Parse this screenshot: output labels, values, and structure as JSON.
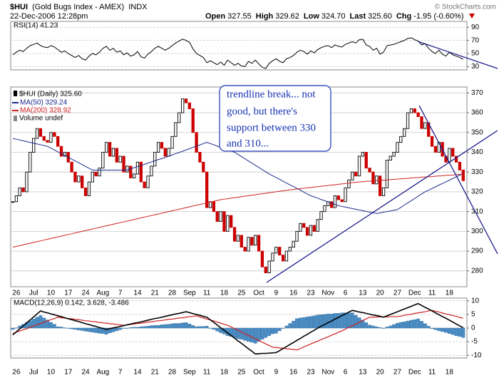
{
  "header": {
    "symbol": "$HUI",
    "name": "(Gold Bugs Index - AMEX)",
    "exchange": "INDX",
    "datetime": "22-Dec-2006 12:28pm",
    "quote": [
      [
        "Open",
        "327.55"
      ],
      [
        "High",
        "329.62"
      ],
      [
        "Low",
        "324.70"
      ],
      [
        "Last",
        "325.60"
      ],
      [
        "Chg",
        "-1.95 (-0.60%)"
      ]
    ],
    "credit": "© StockCharts.com"
  },
  "annotation": {
    "lines": [
      "trendline break... not",
      "good, but there's",
      "support between 330",
      "and 310..."
    ]
  },
  "chart_data": [
    {
      "type": "line",
      "label": "RSI(14) 41.23",
      "color": "#000000",
      "ylim": [
        25,
        99
      ],
      "yticks": [
        90,
        70,
        50,
        30
      ],
      "grid": true,
      "values": [
        48,
        52,
        55,
        53,
        58,
        62,
        64,
        66,
        62,
        60,
        59,
        62,
        60,
        56,
        52,
        54,
        50,
        47,
        44,
        47,
        42,
        40,
        46,
        50,
        48,
        52,
        58,
        61,
        55,
        58,
        52,
        54,
        48,
        51,
        46,
        48,
        53,
        45,
        43,
        49,
        53,
        58,
        61,
        58,
        55,
        58,
        62,
        66,
        69,
        72,
        70,
        67,
        57,
        50,
        47,
        44,
        36,
        39,
        36,
        33,
        37,
        32,
        40,
        36,
        32,
        35,
        31,
        30,
        38,
        35,
        40,
        34,
        29,
        27,
        35,
        39,
        42,
        38,
        36,
        42,
        44,
        47,
        52,
        55,
        53,
        49,
        54,
        51,
        56,
        59,
        61,
        62,
        59,
        63,
        61,
        60,
        64,
        66,
        68,
        66,
        71,
        72,
        63,
        61,
        55,
        58,
        49,
        52,
        62,
        63,
        64,
        66,
        68,
        70,
        73,
        74,
        71,
        69,
        63,
        65,
        58,
        53,
        50,
        55,
        49,
        46,
        52,
        48,
        46,
        44,
        41.23
      ]
    },
    {
      "type": "candlestick",
      "label": "$HUI (Daily) 325.60",
      "volume_label": "Volume undef",
      "up_color": "#000000",
      "down_color": "#cc0000",
      "ylim": [
        272,
        373
      ],
      "yticks": [
        280,
        290,
        300,
        310,
        320,
        330,
        340,
        350,
        360,
        370
      ],
      "grid": true,
      "categories": [
        null,
        "26",
        null,
        null,
        null,
        null,
        "Jul",
        null,
        null,
        null,
        null,
        "10",
        null,
        null,
        null,
        null,
        "17",
        null,
        null,
        null,
        null,
        "24",
        null,
        null,
        null,
        null,
        "Aug",
        null,
        null,
        null,
        null,
        "7",
        null,
        null,
        null,
        null,
        "14",
        null,
        null,
        null,
        null,
        "21",
        null,
        null,
        null,
        null,
        "28",
        null,
        null,
        null,
        null,
        "Sep",
        null,
        null,
        null,
        null,
        "11",
        null,
        null,
        null,
        null,
        "18",
        null,
        null,
        null,
        null,
        "25",
        null,
        null,
        null,
        null,
        "Oct",
        null,
        null,
        null,
        null,
        "9",
        null,
        null,
        null,
        null,
        "16",
        null,
        null,
        null,
        null,
        "23",
        null,
        null,
        null,
        null,
        "Nov",
        null,
        null,
        null,
        null,
        "6",
        null,
        null,
        null,
        null,
        "13",
        null,
        null,
        null,
        null,
        "20",
        null,
        null,
        null,
        null,
        "27",
        null,
        null,
        null,
        null,
        "Dec",
        null,
        null,
        null,
        null,
        "11",
        null,
        null,
        null,
        null,
        "18",
        null,
        null,
        null,
        null
      ],
      "values": [
        315,
        318,
        322,
        320,
        330,
        340,
        347,
        352,
        348,
        346,
        345,
        350,
        348,
        343,
        338,
        340,
        335,
        330,
        325,
        328,
        322,
        318,
        325,
        330,
        328,
        332,
        340,
        345,
        338,
        342,
        335,
        338,
        330,
        333,
        327,
        329,
        335,
        325,
        322,
        328,
        333,
        340,
        345,
        342,
        338,
        342,
        348,
        355,
        360,
        367,
        365,
        362,
        350,
        340,
        335,
        330,
        312,
        315,
        310,
        305,
        310,
        300,
        308,
        302,
        295,
        298,
        292,
        290,
        297,
        293,
        298,
        290,
        282,
        279,
        285,
        289,
        292,
        288,
        285,
        290,
        292,
        295,
        300,
        304,
        302,
        298,
        303,
        300,
        306,
        310,
        313,
        315,
        312,
        318,
        316,
        315,
        322,
        326,
        330,
        328,
        338,
        340,
        332,
        330,
        324,
        328,
        318,
        322,
        336,
        338,
        340,
        345,
        348,
        352,
        360,
        362,
        360,
        358,
        352,
        355,
        348,
        343,
        340,
        345,
        338,
        335,
        342,
        338,
        335,
        331,
        325.6
      ],
      "series": [
        {
          "name": "MA(50) 329.24",
          "color": "#1c2a8c",
          "values": [
            347,
            346.6,
            346.2,
            345.8,
            345.4,
            345,
            344.6,
            344.2,
            343.8,
            343.4,
            343,
            342.1,
            341.2,
            340.2,
            339.3,
            338.4,
            337.5,
            336.5,
            335.6,
            334.7,
            333.8,
            332.8,
            331.9,
            331,
            331,
            331,
            331,
            331,
            331,
            331,
            331,
            331,
            331,
            331,
            331.6,
            332.2,
            332.8,
            333.3,
            333.9,
            334.5,
            335.1,
            335.7,
            336.3,
            336.8,
            337.4,
            338,
            338.6,
            339.3,
            339.9,
            340.5,
            341.2,
            341.8,
            342.5,
            343.1,
            343.7,
            344.4,
            345,
            344.4,
            343.8,
            343.1,
            342.5,
            341.9,
            341.3,
            340.6,
            340,
            338.9,
            337.8,
            336.7,
            335.6,
            334.5,
            333.4,
            332.3,
            331.2,
            330.1,
            329,
            328.1,
            327.2,
            326.3,
            325.3,
            324.4,
            323.5,
            322.6,
            321.7,
            320.8,
            319.8,
            318.9,
            318,
            317.4,
            316.8,
            316.1,
            315.5,
            314.9,
            314.3,
            313.6,
            313,
            312.6,
            312.3,
            311.9,
            311.5,
            311.2,
            310.8,
            310.5,
            310.1,
            309.7,
            309.4,
            309,
            309.3,
            309.7,
            310,
            310.3,
            310.7,
            311,
            312.1,
            313.3,
            314.4,
            315.5,
            316.6,
            317.8,
            318.9,
            320,
            320.8,
            321.7,
            322.5,
            323.4,
            324.2,
            325,
            325.9,
            326.7,
            327.6,
            328.4,
            329.24
          ]
        },
        {
          "name": "MA(200) 328.92",
          "color": "#d02020",
          "values": [
            292,
            292.4,
            292.8,
            293.2,
            293.6,
            294,
            294.4,
            294.8,
            295.2,
            295.6,
            296,
            296.4,
            296.8,
            297.2,
            297.6,
            298,
            298.4,
            298.8,
            299.2,
            299.6,
            300,
            300.4,
            300.8,
            301.2,
            301.6,
            302,
            302.4,
            302.8,
            303.2,
            303.6,
            304,
            304.4,
            304.8,
            305.2,
            305.6,
            306,
            306.4,
            306.8,
            307.2,
            307.6,
            308,
            308.4,
            308.8,
            309.2,
            309.6,
            310,
            310.4,
            310.8,
            311.2,
            311.6,
            312,
            312.4,
            312.8,
            313.2,
            313.6,
            314,
            314.4,
            314.8,
            315.2,
            315.6,
            316,
            316.3,
            316.5,
            316.8,
            317,
            317.3,
            317.5,
            317.8,
            318,
            318.3,
            318.5,
            318.8,
            319,
            319.3,
            319.5,
            319.8,
            320,
            320.3,
            320.5,
            320.8,
            321,
            321.2,
            321.4,
            321.6,
            321.8,
            322,
            322.2,
            322.4,
            322.6,
            322.8,
            323,
            323.2,
            323.4,
            323.6,
            323.8,
            324,
            324.2,
            324.4,
            324.6,
            324.8,
            325,
            325.1,
            325.3,
            325.4,
            325.5,
            325.7,
            325.8,
            325.9,
            326,
            326.2,
            326.3,
            326.4,
            326.6,
            326.7,
            326.8,
            327,
            327.1,
            327.2,
            327.4,
            327.5,
            327.6,
            327.7,
            327.9,
            328,
            328.1,
            328.3,
            328.4,
            328.5,
            328.7,
            328.8,
            328.92
          ]
        }
      ]
    },
    {
      "type": "bar",
      "label": "MACD(12,26,9) 0.142, 3.628, -3.486",
      "ylim": [
        -11,
        11
      ],
      "yticks": [
        10,
        5,
        0,
        -5,
        -10
      ],
      "grid": true,
      "macd_color": "#000000",
      "signal_color": "#d02020",
      "histogram_color": "#4a8cc4",
      "macd": [
        -2.5,
        -1.4,
        -0.3,
        0.8,
        1.9,
        3,
        4.1,
        5.2,
        6.3,
        5.9,
        5.6,
        5.2,
        4.9,
        4.5,
        4.2,
        3.8,
        3.4,
        3.1,
        2.7,
        2.4,
        2,
        1.6,
        1.3,
        0.9,
        0.6,
        0.2,
        -0.1,
        -0.5,
        -0.2,
        0.1,
        0.3,
        0.6,
        0.9,
        1.2,
        1.5,
        1.8,
        2,
        2.3,
        2.6,
        2.9,
        3.2,
        3.5,
        3.7,
        4,
        4.3,
        4.6,
        4.9,
        5.2,
        5.4,
        5.7,
        6,
        5.7,
        5.3,
        5,
        4.7,
        4.3,
        4,
        3,
        2.1,
        1.1,
        0.1,
        -0.8,
        -1.8,
        -2.7,
        -3.7,
        -4.7,
        -5.6,
        -6.6,
        -7.6,
        -8.5,
        -9.5,
        -9.4,
        -9.3,
        -9.3,
        -9.2,
        -9.1,
        -9,
        -8.3,
        -7.5,
        -6.8,
        -6,
        -5.3,
        -4.5,
        -3.8,
        -3,
        -2.3,
        -1.5,
        -0.8,
        0,
        0.7,
        1.3,
        2,
        2.6,
        3.3,
        3.9,
        4.6,
        5.2,
        5.9,
        6.5,
        6.2,
        5.9,
        5.7,
        5.4,
        5.1,
        4.8,
        4.6,
        4.3,
        4,
        4.5,
        5,
        5.5,
        6,
        6.5,
        7,
        7.5,
        8,
        8.5,
        9,
        8.3,
        7.6,
        7,
        6.3,
        5.6,
        4.9,
        4.2,
        3.6,
        2.9,
        2.2,
        1.5,
        0.8,
        0.142
      ],
      "signal": [
        -2,
        -1.5,
        -1.1,
        -0.6,
        -0.2,
        0.3,
        0.8,
        1.2,
        1.7,
        2.2,
        2.6,
        3.1,
        3.5,
        4,
        3.8,
        3.7,
        3.5,
        3.4,
        3.2,
        3.1,
        2.9,
        2.7,
        2.6,
        2.4,
        2.3,
        2.1,
        1.9,
        1.8,
        1.6,
        1.5,
        1.3,
        1.2,
        1,
        1.2,
        1.3,
        1.5,
        1.7,
        1.8,
        2,
        2.2,
        2.3,
        2.5,
        2.7,
        2.8,
        3,
        3.2,
        3.3,
        3.5,
        3.7,
        3.8,
        4,
        4.2,
        4.3,
        4.5,
        4.1,
        3.7,
        3.3,
        3,
        2.6,
        2.2,
        1.8,
        1.4,
        1,
        0.4,
        -0.2,
        -0.8,
        -1.5,
        -2.1,
        -2.7,
        -3.3,
        -3.9,
        -4.5,
        -5.2,
        -5.8,
        -6.4,
        -7,
        -7.1,
        -7.3,
        -7.4,
        -7.6,
        -7.7,
        -7.9,
        -8,
        -7.5,
        -6.9,
        -6.4,
        -5.8,
        -5.3,
        -4.8,
        -4.2,
        -3.7,
        -3.2,
        -2.6,
        -2.1,
        -1.5,
        -1,
        -0.4,
        0.3,
        0.9,
        1.5,
        2.1,
        2.8,
        3.4,
        4,
        4,
        4.1,
        4.1,
        4.1,
        4.1,
        4.2,
        4.2,
        4.2,
        4.4,
        4.7,
        4.9,
        5.1,
        5.4,
        5.6,
        5.8,
        6,
        6.3,
        6.5,
        6.2,
        5.9,
        5.5,
        5.2,
        4.9,
        4.6,
        4.3,
        3.9,
        3.628
      ],
      "histogram": [
        -0.5,
        0.1,
        0.8,
        1.4,
        2.1,
        2.7,
        3.3,
        4,
        4.6,
        3.7,
        3,
        2.1,
        1.4,
        0.5,
        0.4,
        0.1,
        -0.1,
        -0.3,
        -0.5,
        -0.7,
        -0.9,
        -1.1,
        -1.3,
        -1.5,
        -1.7,
        -1.9,
        -2,
        -2.3,
        -1.8,
        -1.4,
        -1,
        -0.6,
        -0.1,
        0,
        0.2,
        0.3,
        0.3,
        0.5,
        0.6,
        0.7,
        0.9,
        1,
        1,
        1.2,
        1.3,
        1.4,
        1.6,
        1.7,
        1.7,
        1.9,
        2,
        1.5,
        1,
        0.5,
        0.6,
        0.6,
        0.7,
        0,
        -0.5,
        -1.1,
        -1.7,
        -2.2,
        -2.8,
        -3.1,
        -3.5,
        -3.9,
        -4.1,
        -4.5,
        -4.9,
        -5.2,
        -5.6,
        -4.9,
        -4.1,
        -3.5,
        -2.8,
        -2.1,
        -1.9,
        -1,
        -0.1,
        0.8,
        1.7,
        2.6,
        3.5,
        3.7,
        3.9,
        4.1,
        4.3,
        4.5,
        4.8,
        4.9,
        5,
        5.2,
        5.2,
        5.4,
        5.4,
        5.6,
        5.6,
        5.6,
        5.6,
        4.7,
        3.8,
        2.9,
        2,
        1.1,
        0.8,
        0.5,
        0.2,
        -0.1,
        0.4,
        0.8,
        1.3,
        1.8,
        2.1,
        2.3,
        2.6,
        2.9,
        3.1,
        3.4,
        2.5,
        1.6,
        0.7,
        -0.2,
        -0.6,
        -1,
        -1.3,
        -1.6,
        -2,
        -2.4,
        -2.8,
        -3.1,
        -3.486
      ]
    }
  ]
}
